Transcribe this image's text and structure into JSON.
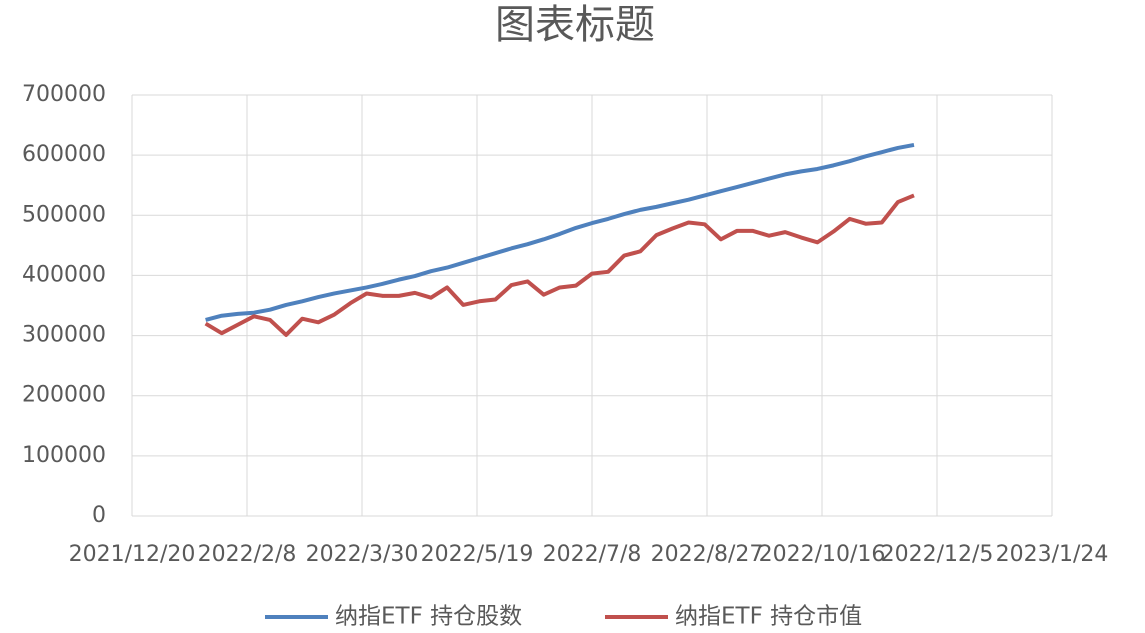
{
  "chart_data": {
    "type": "line",
    "title": "图表标题",
    "x": [
      "2022/1/21",
      "2022/1/28",
      "2022/2/4",
      "2022/2/11",
      "2022/2/18",
      "2022/2/25",
      "2022/3/4",
      "2022/3/11",
      "2022/3/18",
      "2022/3/25",
      "2022/4/1",
      "2022/4/8",
      "2022/4/15",
      "2022/4/22",
      "2022/4/29",
      "2022/5/6",
      "2022/5/13",
      "2022/5/20",
      "2022/5/27",
      "2022/6/3",
      "2022/6/10",
      "2022/6/17",
      "2022/6/24",
      "2022/7/1",
      "2022/7/8",
      "2022/7/15",
      "2022/7/22",
      "2022/7/29",
      "2022/8/5",
      "2022/8/12",
      "2022/8/19",
      "2022/8/26",
      "2022/9/2",
      "2022/9/9",
      "2022/9/16",
      "2022/9/23",
      "2022/9/30",
      "2022/10/7",
      "2022/10/14",
      "2022/10/21",
      "2022/10/28",
      "2022/11/4",
      "2022/11/11",
      "2022/11/18",
      "2022/11/25"
    ],
    "series": [
      {
        "name": "纳指ETF 持仓股数",
        "color": "#4f81bd",
        "values": [
          326000,
          333000,
          336000,
          338000,
          343000,
          351000,
          357000,
          364000,
          370000,
          375000,
          380000,
          386000,
          393000,
          399000,
          407000,
          413000,
          421000,
          429000,
          437000,
          445000,
          452000,
          460000,
          469000,
          479000,
          487000,
          494000,
          502000,
          509000,
          514000,
          520000,
          526000,
          533000,
          540000,
          547000,
          554000,
          561000,
          568000,
          573000,
          577000,
          583000,
          590000,
          598000,
          605000,
          612000,
          617000
        ]
      },
      {
        "name": "纳指ETF 持仓市值",
        "color": "#c0504d",
        "values": [
          320000,
          304000,
          318000,
          332000,
          326000,
          301000,
          328000,
          322000,
          335000,
          354000,
          370000,
          366000,
          366000,
          371000,
          363000,
          380000,
          351000,
          357000,
          360000,
          384000,
          390000,
          368000,
          380000,
          383000,
          403000,
          406000,
          433000,
          440000,
          467000,
          478000,
          488000,
          485000,
          460000,
          474000,
          474000,
          466000,
          472000,
          463000,
          455000,
          473000,
          494000,
          486000,
          488000,
          522000,
          533000
        ]
      }
    ],
    "xlim": [
      "2021/12/20",
      "2023/1/24"
    ],
    "xticks": [
      "2021/12/20",
      "2022/2/8",
      "2022/3/30",
      "2022/5/19",
      "2022/7/8",
      "2022/8/27",
      "2022/10/16",
      "2022/12/5",
      "2023/1/24"
    ],
    "ylim": [
      0,
      700000
    ],
    "yticks": [
      0,
      100000,
      200000,
      300000,
      400000,
      500000,
      600000,
      700000
    ],
    "grid": true,
    "legend": "bottom"
  }
}
